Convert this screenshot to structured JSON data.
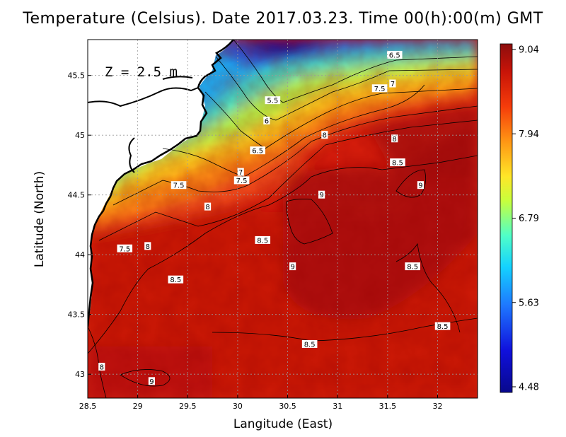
{
  "title": "Temperature (Celsius). Date 2017.03.23. Time 00(h):00(m) GMT",
  "depth_label": "Z = 2.5 m",
  "colors": {
    "cold": "#08088c",
    "cool": "#1e9bff",
    "mid": "#ffff3c",
    "warm": "#ff7a1e",
    "hot": "#8c0d0d",
    "land": "#ffffff",
    "coast": "#000000"
  },
  "chart_data": {
    "type": "heatmap",
    "title": "Temperature (Celsius). Date 2017.03.23. Time 00(h):00(m) GMT",
    "xlabel": "Langitude (East)",
    "ylabel": "Latitude (North)",
    "xlim": [
      28.5,
      32.4
    ],
    "ylim": [
      42.8,
      45.8
    ],
    "x_ticks": [
      "28.5",
      "29",
      "29.5",
      "30",
      "30.5",
      "31",
      "31.5",
      "32"
    ],
    "y_ticks": [
      "43",
      "43.5",
      "44",
      "44.5",
      "45",
      "45.5"
    ],
    "grid": true,
    "colorbar": {
      "min": 4.48,
      "max": 9.04,
      "tick_labels": [
        "9.04",
        "7.94",
        "6.79",
        "5.63",
        "4.48"
      ]
    },
    "contour_labels": [
      {
        "text": "6.5",
        "lon": 31.57,
        "lat": 45.67
      },
      {
        "text": "7",
        "lon": 31.55,
        "lat": 45.43
      },
      {
        "text": "7.5",
        "lon": 31.42,
        "lat": 45.39
      },
      {
        "text": "5.5",
        "lon": 30.35,
        "lat": 45.29
      },
      {
        "text": "6",
        "lon": 30.29,
        "lat": 45.12
      },
      {
        "text": "8",
        "lon": 30.87,
        "lat": 45.0
      },
      {
        "text": "8",
        "lon": 31.57,
        "lat": 44.97
      },
      {
        "text": "6.5",
        "lon": 30.2,
        "lat": 44.87
      },
      {
        "text": "8.5",
        "lon": 31.6,
        "lat": 44.77
      },
      {
        "text": "7",
        "lon": 30.03,
        "lat": 44.69
      },
      {
        "text": "7.5",
        "lon": 30.04,
        "lat": 44.62
      },
      {
        "text": "9",
        "lon": 31.83,
        "lat": 44.58
      },
      {
        "text": "7.5",
        "lon": 29.41,
        "lat": 44.58
      },
      {
        "text": "9",
        "lon": 30.84,
        "lat": 44.5
      },
      {
        "text": "8",
        "lon": 29.7,
        "lat": 44.4
      },
      {
        "text": "8.5",
        "lon": 30.25,
        "lat": 44.12
      },
      {
        "text": "7.5",
        "lon": 28.87,
        "lat": 44.05
      },
      {
        "text": "8",
        "lon": 29.1,
        "lat": 44.07
      },
      {
        "text": "9",
        "lon": 30.55,
        "lat": 43.9
      },
      {
        "text": "8.5",
        "lon": 31.75,
        "lat": 43.9
      },
      {
        "text": "8.5",
        "lon": 29.38,
        "lat": 43.79
      },
      {
        "text": "8.5",
        "lon": 32.05,
        "lat": 43.4
      },
      {
        "text": "8.5",
        "lon": 30.72,
        "lat": 43.25
      },
      {
        "text": "8",
        "lon": 28.64,
        "lat": 43.06
      },
      {
        "text": "9",
        "lon": 29.14,
        "lat": 42.94
      }
    ]
  }
}
